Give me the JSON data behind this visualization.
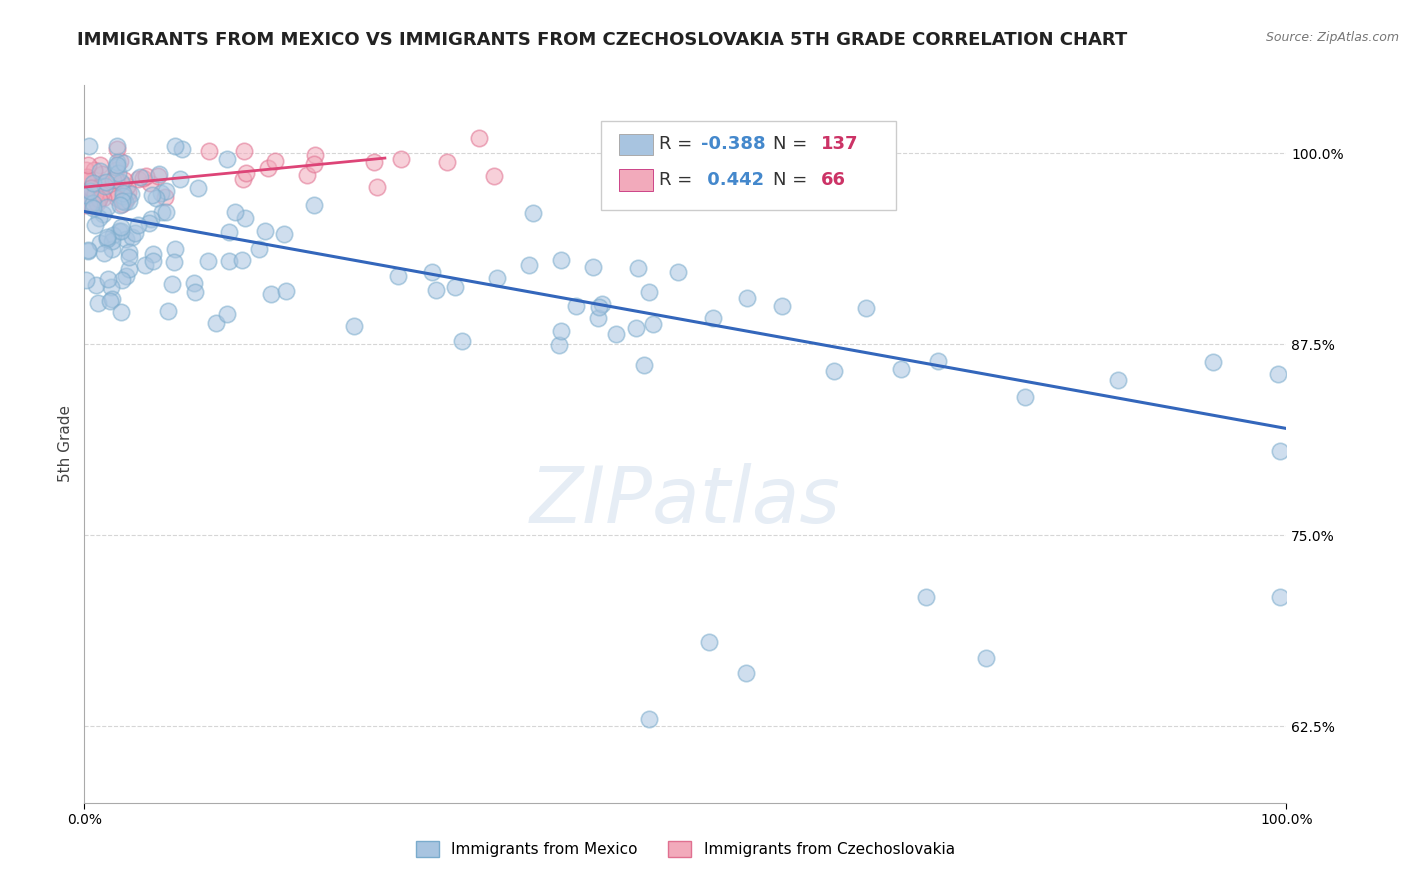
{
  "title": "IMMIGRANTS FROM MEXICO VS IMMIGRANTS FROM CZECHOSLOVAKIA 5TH GRADE CORRELATION CHART",
  "source": "Source: ZipAtlas.com",
  "ylabel": "5th Grade",
  "legend_label_blue": "Immigrants from Mexico",
  "legend_label_pink": "Immigrants from Czechoslovakia",
  "x_tick_labels": [
    "0.0%",
    "100.0%"
  ],
  "y_tick_labels": [
    "62.5%",
    "75.0%",
    "87.5%",
    "100.0%"
  ],
  "y_tick_values": [
    0.625,
    0.75,
    0.875,
    1.0
  ],
  "x_lim": [
    0.0,
    1.0
  ],
  "y_lim": [
    0.575,
    1.045
  ],
  "R_blue": -0.388,
  "N_blue": 137,
  "R_pink": 0.442,
  "N_pink": 66,
  "blue_color": "#a8c4e0",
  "blue_edge_color": "#7aabcc",
  "blue_line_color": "#3366bb",
  "pink_color": "#f2aabb",
  "pink_edge_color": "#e07090",
  "pink_line_color": "#dd4477",
  "background_color": "#ffffff",
  "watermark_text": "ZIPatlas",
  "title_fontsize": 13,
  "axis_label_fontsize": 11,
  "tick_fontsize": 10,
  "blue_line_x0": 0.0,
  "blue_line_y0": 0.962,
  "blue_line_x1": 1.0,
  "blue_line_y1": 0.82,
  "pink_line_x0": 0.0,
  "pink_line_y0": 0.978,
  "pink_line_x1": 0.25,
  "pink_line_y1": 0.997
}
